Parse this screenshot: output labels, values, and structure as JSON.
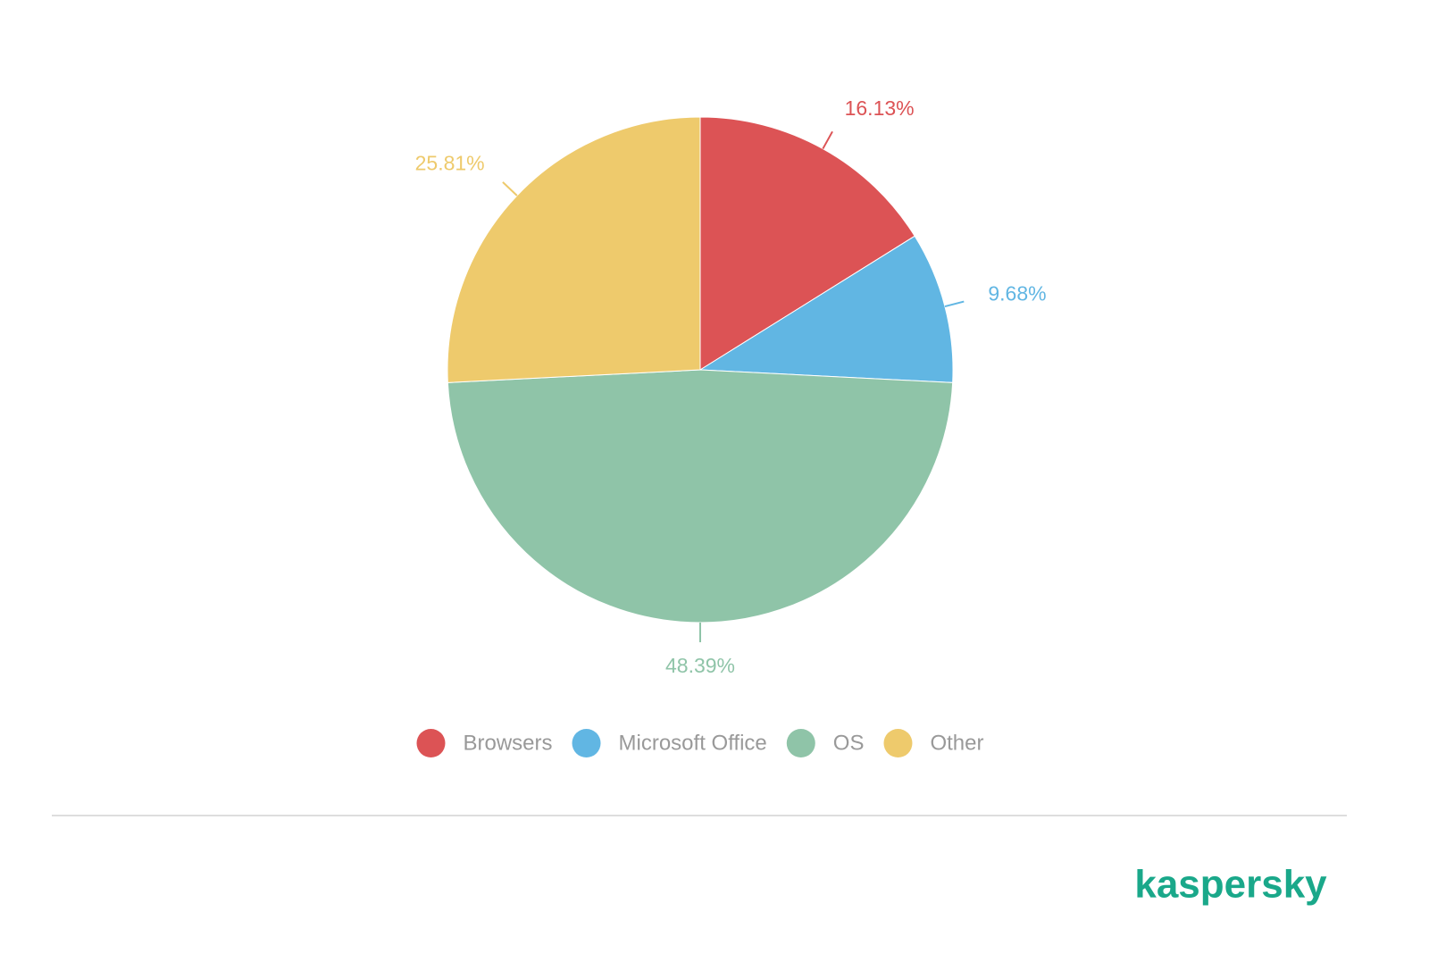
{
  "chart_data": {
    "type": "pie",
    "categories": [
      "Browsers",
      "Microsoft Office",
      "OS",
      "Other"
    ],
    "values": [
      16.13,
      9.68,
      48.39,
      25.81
    ],
    "value_labels": [
      "16.13%",
      "9.68%",
      "48.39%",
      "25.81%"
    ],
    "colors": [
      "#dc5355",
      "#61b6e3",
      "#8fc4a8",
      "#eeca6c"
    ],
    "legend": "bottom"
  },
  "logo": "kaspersky"
}
